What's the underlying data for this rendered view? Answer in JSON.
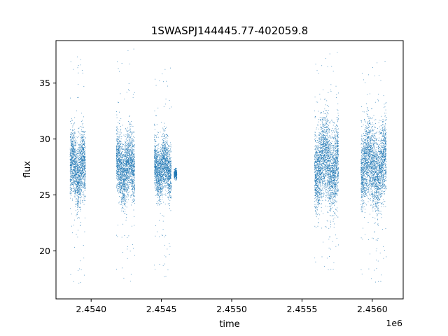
{
  "chart_data": {
    "type": "scatter",
    "title": "1SWASPJ144445.77-402059.8",
    "xlabel": "time",
    "ylabel": "flux",
    "x_offset_label": "1e6",
    "xlim": [
      2453750,
      2456220
    ],
    "ylim": [
      15.7,
      38.8
    ],
    "x_ticks": [
      2454000,
      2454500,
      2455000,
      2455500,
      2456000
    ],
    "x_tick_labels": [
      "2.4540",
      "2.4545",
      "2.4550",
      "2.4555",
      "2.4560"
    ],
    "y_ticks": [
      20,
      25,
      30,
      35
    ],
    "y_tick_labels": [
      "20",
      "25",
      "30",
      "35"
    ],
    "grid": false,
    "marker_color": "#1f77b4",
    "series": [
      {
        "name": "",
        "segments": [
          {
            "x_start": 2453850,
            "x_end": 2453960,
            "y_mean": 27.3,
            "y_spread": 2.4,
            "y_min": 16.8,
            "y_max": 38.0
          },
          {
            "x_start": 2454180,
            "x_end": 2454310,
            "y_mean": 27.4,
            "y_spread": 2.3,
            "y_min": 16.9,
            "y_max": 38.1
          },
          {
            "x_start": 2454450,
            "x_end": 2454570,
            "y_mean": 27.4,
            "y_spread": 1.9,
            "y_min": 17.4,
            "y_max": 36.4
          },
          {
            "x_start": 2454590,
            "x_end": 2454610,
            "y_mean": 26.9,
            "y_spread": 0.3,
            "y_min": 26.3,
            "y_max": 27.4
          },
          {
            "x_start": 2455590,
            "x_end": 2455760,
            "y_mean": 27.8,
            "y_spread": 2.9,
            "y_min": 18.0,
            "y_max": 37.8
          },
          {
            "x_start": 2455920,
            "x_end": 2456100,
            "y_mean": 27.6,
            "y_spread": 2.8,
            "y_min": 16.9,
            "y_max": 37.0
          }
        ]
      }
    ]
  }
}
